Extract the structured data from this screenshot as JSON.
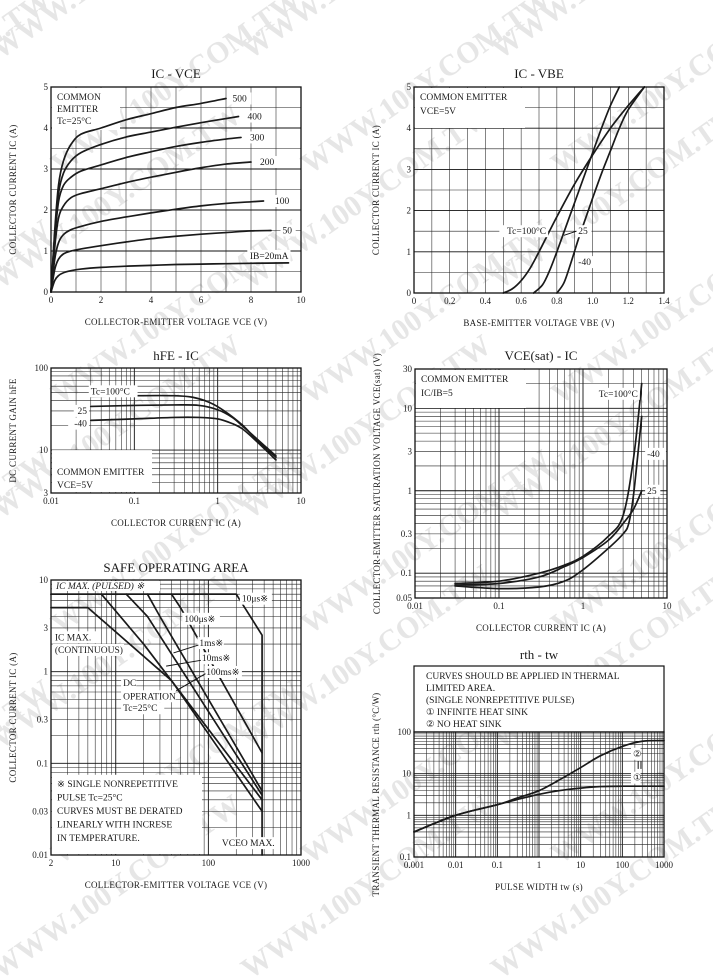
{
  "watermark": "WWW.100Y.COM.TW",
  "chart_data": [
    {
      "id": "ic_vce",
      "type": "line",
      "title": "IC - VCE",
      "title_main": "I",
      "title_sub": "C",
      "title_mid": " - V",
      "title_sub2": "CE",
      "xlabel": "COLLECTOR-EMITTER VOLTAGE   VCE   (V)",
      "ylabel": "COLLECTOR CURRENT   IC   (A)",
      "xscale": "linear",
      "yscale": "linear",
      "xlim": [
        0,
        10
      ],
      "ylim": [
        0,
        5
      ],
      "xticks": [
        0,
        2,
        4,
        6,
        8,
        10
      ],
      "yticks": [
        0,
        1,
        2,
        3,
        4,
        5
      ],
      "xtick_labels": [
        "0",
        "2",
        "4",
        "6",
        "8",
        "10"
      ],
      "ytick_labels": [
        "0",
        "1",
        "2",
        "3",
        "4",
        "5"
      ],
      "grid": true,
      "annotations": [
        "COMMON",
        "EMITTER",
        "Tc=25°C"
      ],
      "series": [
        {
          "name": "500",
          "label": "500",
          "x": [
            0,
            0.15,
            0.3,
            0.5,
            0.8,
            1.2,
            2,
            3,
            4,
            5,
            6,
            7
          ],
          "y": [
            0,
            1.5,
            2.6,
            3.2,
            3.6,
            3.85,
            4.0,
            4.2,
            4.35,
            4.5,
            4.6,
            4.72
          ]
        },
        {
          "name": "400",
          "label": "400",
          "x": [
            0,
            0.15,
            0.3,
            0.5,
            0.8,
            1.2,
            2,
            3,
            4,
            5,
            6,
            7,
            7.5
          ],
          "y": [
            0,
            1.4,
            2.4,
            2.9,
            3.2,
            3.4,
            3.6,
            3.78,
            3.9,
            4.02,
            4.13,
            4.23,
            4.28
          ]
        },
        {
          "name": "300",
          "label": "300",
          "x": [
            0,
            0.15,
            0.3,
            0.5,
            0.8,
            1.2,
            2,
            3,
            4,
            5,
            6,
            7,
            7.6
          ],
          "y": [
            0,
            1.3,
            2.2,
            2.6,
            2.8,
            2.95,
            3.1,
            3.28,
            3.42,
            3.55,
            3.65,
            3.73,
            3.77
          ]
        },
        {
          "name": "200",
          "label": "200",
          "x": [
            0,
            0.15,
            0.3,
            0.5,
            0.8,
            1.2,
            2,
            3,
            4,
            5,
            6,
            7,
            8
          ],
          "y": [
            0,
            1.1,
            1.8,
            2.1,
            2.3,
            2.4,
            2.52,
            2.67,
            2.8,
            2.92,
            3.03,
            3.12,
            3.17
          ]
        },
        {
          "name": "100",
          "label": "100",
          "x": [
            0,
            0.15,
            0.3,
            0.5,
            0.8,
            1.2,
            2,
            3,
            4,
            5,
            6,
            7,
            8,
            8.5
          ],
          "y": [
            0,
            0.8,
            1.2,
            1.4,
            1.52,
            1.6,
            1.72,
            1.83,
            1.93,
            2.02,
            2.1,
            2.16,
            2.2,
            2.22
          ]
        },
        {
          "name": "50",
          "label": "50",
          "x": [
            0,
            0.15,
            0.3,
            0.5,
            0.8,
            1.2,
            2,
            3,
            4,
            5,
            6,
            7,
            8,
            8.8
          ],
          "y": [
            0,
            0.55,
            0.8,
            0.93,
            1.0,
            1.05,
            1.13,
            1.22,
            1.3,
            1.36,
            1.41,
            1.45,
            1.49,
            1.5
          ]
        },
        {
          "name": "IB=20mA",
          "label": "IB=20mA",
          "x": [
            0,
            0.15,
            0.3,
            0.5,
            0.8,
            1.2,
            2,
            3,
            4,
            5,
            6,
            7,
            8,
            9.5
          ],
          "y": [
            0,
            0.28,
            0.4,
            0.47,
            0.52,
            0.56,
            0.6,
            0.63,
            0.65,
            0.67,
            0.68,
            0.69,
            0.7,
            0.71
          ]
        }
      ]
    },
    {
      "id": "ic_vbe",
      "type": "line",
      "title": "IC - VBE",
      "xlabel": "BASE-EMITTER VOLTAGE   VBE   (V)",
      "ylabel": "COLLECTOR CURRENT   IC   (A)",
      "xscale": "linear",
      "yscale": "linear",
      "xlim": [
        0,
        1.4
      ],
      "ylim": [
        0,
        5
      ],
      "xticks": [
        0,
        0.2,
        0.4,
        0.6,
        0.8,
        1.0,
        1.2,
        1.4
      ],
      "xtick_labels": [
        "0",
        "0.2",
        "0.4",
        "0.6",
        "0.8",
        "1.0",
        "1.2",
        "1.4"
      ],
      "yticks": [
        0,
        1,
        2,
        3,
        4,
        5
      ],
      "ytick_labels": [
        "0",
        "1",
        "2",
        "3",
        "4",
        "5"
      ],
      "grid": true,
      "annotations": [
        "COMMON EMITTER",
        "VCE=5V"
      ],
      "series": [
        {
          "name": "Tc=100°C",
          "label": "Tc=100°C",
          "x": [
            0.5,
            0.55,
            0.6,
            0.65,
            0.7,
            0.8,
            0.9,
            1.0,
            1.1,
            1.2,
            1.29
          ],
          "y": [
            0,
            0.1,
            0.3,
            0.6,
            1.0,
            1.85,
            2.65,
            3.35,
            4.0,
            4.55,
            5.0
          ]
        },
        {
          "name": "25",
          "label": "25",
          "x": [
            0.67,
            0.72,
            0.76,
            0.8,
            0.85,
            0.9,
            0.95,
            1.0,
            1.05,
            1.1,
            1.15
          ],
          "y": [
            0,
            0.2,
            0.55,
            1.0,
            1.6,
            2.2,
            2.8,
            3.4,
            4.0,
            4.55,
            5.0
          ]
        },
        {
          "name": "-40",
          "label": "-40",
          "x": [
            0.8,
            0.84,
            0.88,
            0.92,
            0.96,
            1.0,
            1.05,
            1.1,
            1.15,
            1.2,
            1.29
          ],
          "y": [
            0,
            0.25,
            0.75,
            1.3,
            1.8,
            2.3,
            2.9,
            3.45,
            4.0,
            4.45,
            5.0
          ]
        }
      ]
    },
    {
      "id": "hfe_ic",
      "type": "line",
      "title": "hFE - IC",
      "xlabel": "COLLECTOR CURRENT   IC   (A)",
      "ylabel": "DC CURRENT GAIN   hFE",
      "xscale": "log",
      "yscale": "log",
      "xlim": [
        0.01,
        10
      ],
      "ylim": [
        3,
        100
      ],
      "xticks": [
        0.01,
        0.1,
        1,
        10
      ],
      "xtick_labels": [
        "0.01",
        "0.1",
        "1",
        "10"
      ],
      "yticks": [
        3,
        10,
        100
      ],
      "ytick_labels": [
        "3",
        "10",
        "100"
      ],
      "grid": true,
      "annotations": [
        "COMMON EMITTER",
        "VCE=5V"
      ],
      "series": [
        {
          "name": "Tc=100°C",
          "label": "Tc=100°C",
          "x": [
            0.03,
            0.1,
            0.3,
            0.5,
            0.8,
            1.2,
            2,
            3,
            5
          ],
          "y": [
            45,
            46,
            46,
            44,
            38,
            30,
            20,
            13,
            8.2
          ]
        },
        {
          "name": "25",
          "label": "25",
          "x": [
            0.03,
            0.1,
            0.3,
            0.6,
            1.0,
            1.5,
            2,
            3,
            5
          ],
          "y": [
            34,
            35,
            35.5,
            35,
            31,
            25,
            19.5,
            13.5,
            8.5
          ]
        },
        {
          "name": "-40",
          "label": "-40",
          "x": [
            0.03,
            0.1,
            0.3,
            0.6,
            1.0,
            1.5,
            2,
            3,
            5
          ],
          "y": [
            23,
            24,
            25,
            25,
            24,
            21,
            18,
            12.5,
            7.6
          ]
        }
      ]
    },
    {
      "id": "vcesat_ic",
      "type": "line",
      "title": "VCE(sat) - IC",
      "xlabel": "COLLECTOR CURRENT   IC   (A)",
      "ylabel": "COLLECTOR-EMITTER SATURATION VOLTAGE   VCE(sat)   (V)",
      "xscale": "log",
      "yscale": "log",
      "xlim": [
        0.01,
        10
      ],
      "ylim": [
        0.05,
        30
      ],
      "xticks": [
        0.01,
        0.1,
        1,
        10
      ],
      "xtick_labels": [
        "0.01",
        "0.1",
        "1",
        "10"
      ],
      "yticks": [
        0.05,
        0.1,
        0.3,
        1,
        3,
        10,
        30
      ],
      "ytick_labels": [
        "0.05",
        "0.1",
        "0.3",
        "1",
        "3",
        "10",
        "30"
      ],
      "grid": true,
      "annotations": [
        "COMMON EMITTER",
        "IC/IB=5"
      ],
      "series": [
        {
          "name": "Tc=100°C",
          "label": "Tc=100°C",
          "x": [
            0.03,
            0.1,
            0.3,
            0.6,
            1,
            2,
            3,
            4,
            5
          ],
          "y": [
            0.075,
            0.08,
            0.1,
            0.125,
            0.16,
            0.28,
            0.5,
            2.5,
            20
          ]
        },
        {
          "name": "-40",
          "label": "-40",
          "x": [
            0.03,
            0.1,
            0.3,
            0.6,
            1,
            2,
            3,
            3.5,
            4,
            5
          ],
          "y": [
            0.07,
            0.065,
            0.068,
            0.08,
            0.11,
            0.2,
            0.3,
            0.4,
            0.9,
            8
          ]
        },
        {
          "name": "25",
          "label": "25",
          "x": [
            0.03,
            0.1,
            0.3,
            0.6,
            1,
            2,
            3,
            4,
            5
          ],
          "y": [
            0.072,
            0.075,
            0.09,
            0.12,
            0.155,
            0.25,
            0.4,
            0.6,
            1.0
          ]
        }
      ]
    },
    {
      "id": "soa",
      "type": "line",
      "title": "SAFE OPERATING AREA",
      "xlabel": "COLLECTOR-EMITTER VOLTAGE   VCE   (V)",
      "ylabel": "COLLECTOR CURRENT   IC   (A)",
      "xscale": "log",
      "yscale": "log",
      "xlim": [
        2,
        1000
      ],
      "ylim": [
        0.01,
        10
      ],
      "xticks": [
        2,
        10,
        100,
        1000
      ],
      "xtick_labels": [
        "2",
        "10",
        "100",
        "1000"
      ],
      "yticks": [
        0.01,
        0.03,
        0.1,
        0.3,
        1,
        3,
        10
      ],
      "ytick_labels": [
        "0.01",
        "0.03",
        "0.1",
        "0.3",
        "1",
        "3",
        "10"
      ],
      "grid": true,
      "annotations": [
        "IC MAX. (PULSED) ※",
        "IC MAX.",
        "(CONTINUOUS)",
        "DC",
        "OPERATION",
        "Tc=25°C",
        "※ SINGLE NONREPETITIVE",
        "PULSE   Tc=25°C",
        "CURVES MUST BE DERATED",
        "LINEARLY WITH INCRESE",
        "IN TEMPERATURE.",
        "VCEO MAX."
      ],
      "series": [
        {
          "name": "10μs※",
          "label": "10μs※",
          "x": [
            2,
            200,
            380,
            380
          ],
          "y": [
            7,
            7,
            2.5,
            0.01
          ]
        },
        {
          "name": "100μs※",
          "label": "100μs※",
          "x": [
            40,
            50,
            380
          ],
          "y": [
            7,
            5,
            0.13
          ]
        },
        {
          "name": "1ms※",
          "label": "1ms※",
          "x": [
            22,
            30,
            380
          ],
          "y": [
            7,
            4,
            0.05
          ]
        },
        {
          "name": "10ms※",
          "label": "10ms※",
          "x": [
            13,
            22,
            380
          ],
          "y": [
            7,
            4,
            0.045
          ]
        },
        {
          "name": "100ms※",
          "label": "100ms※",
          "x": [
            7,
            20,
            380
          ],
          "y": [
            7,
            2,
            0.04
          ]
        },
        {
          "name": "DC OPERATION",
          "label": "DC OPERATION",
          "x": [
            2,
            5,
            40,
            380
          ],
          "y": [
            5,
            5,
            0.8,
            0.03
          ]
        }
      ]
    },
    {
      "id": "rth_tw",
      "type": "line",
      "title": "rth - tw",
      "xlabel": "PULSE WIDTH   tw   (s)",
      "ylabel": "TRANSIENT THERMAL RESISTANCE   rth   (°C/W)",
      "xscale": "log",
      "yscale": "log",
      "xlim": [
        0.001,
        1000
      ],
      "ylim": [
        0.1,
        100
      ],
      "xticks": [
        0.001,
        0.01,
        0.1,
        1,
        10,
        100,
        1000
      ],
      "xtick_labels": [
        "0.001",
        "0.01",
        "0.1",
        "1",
        "10",
        "100",
        "1000"
      ],
      "yticks": [
        0.1,
        1,
        10,
        100
      ],
      "ytick_labels": [
        "0.1",
        "1",
        "10",
        "100"
      ],
      "grid": true,
      "annotations": [
        "CURVES SHOULD BE APPLIED IN THERMAL",
        "LIMITED AREA.",
        "(SINGLE NONREPETITIVE PULSE)",
        "①  INFINITE HEAT SINK",
        "②  NO HEAT SINK"
      ],
      "series": [
        {
          "name": "① INFINITE HEAT SINK",
          "label": "①",
          "x": [
            0.001,
            0.01,
            0.1,
            0.3,
            1,
            3,
            10,
            30,
            100,
            1000
          ],
          "y": [
            0.4,
            1.0,
            1.8,
            2.4,
            3.2,
            3.9,
            4.5,
            4.9,
            5.0,
            5.0
          ]
        },
        {
          "name": "② NO HEAT SINK",
          "label": "②",
          "x": [
            0.001,
            0.01,
            0.1,
            0.3,
            1,
            3,
            10,
            30,
            100,
            300,
            1000
          ],
          "y": [
            0.4,
            1.0,
            1.8,
            2.6,
            3.9,
            7,
            14,
            27,
            45,
            60,
            62
          ]
        }
      ]
    }
  ]
}
